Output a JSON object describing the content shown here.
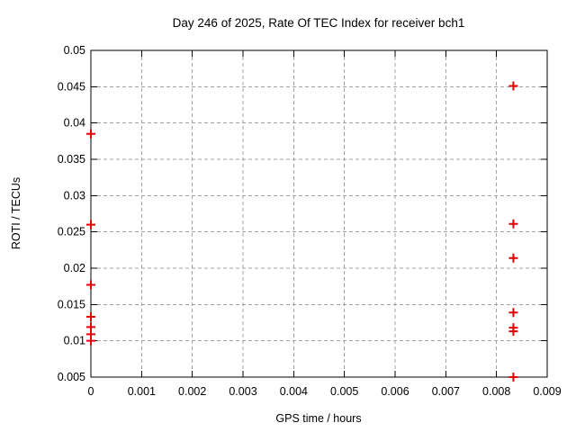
{
  "chart_data": {
    "type": "scatter",
    "title": "Day 246 of 2025, Rate Of TEC Index for receiver bch1",
    "xlabel": "GPS time / hours",
    "ylabel": "ROTI / TECUs",
    "xlim": [
      0,
      0.009
    ],
    "ylim": [
      0.005,
      0.05
    ],
    "grid": true,
    "legend": "none",
    "marker": {
      "shape": "plus",
      "color": "#e60000",
      "size": 10
    },
    "xticks": {
      "values": [
        0,
        0.001,
        0.002,
        0.003,
        0.004,
        0.005,
        0.006,
        0.007,
        0.008,
        0.009
      ],
      "labels": [
        "0",
        "0.001",
        "0.002",
        "0.003",
        "0.004",
        "0.005",
        "0.006",
        "0.007",
        "0.008",
        "0.009"
      ]
    },
    "yticks": {
      "values": [
        0.005,
        0.01,
        0.015,
        0.02,
        0.025,
        0.03,
        0.035,
        0.04,
        0.045,
        0.05
      ],
      "labels": [
        "0.005",
        "0.01",
        "0.015",
        "0.02",
        "0.025",
        "0.03",
        "0.035",
        "0.04",
        "0.045",
        "0.05"
      ]
    },
    "series": [
      {
        "name": "roti",
        "points": [
          [
            0,
            0.0385
          ],
          [
            0,
            0.026
          ],
          [
            0,
            0.0177
          ],
          [
            0,
            0.0133
          ],
          [
            0,
            0.0119
          ],
          [
            0,
            0.0109
          ],
          [
            0,
            0.01
          ],
          [
            0.008333,
            0.0451
          ],
          [
            0.008333,
            0.0261
          ],
          [
            0.008333,
            0.0214
          ],
          [
            0.008333,
            0.0139
          ],
          [
            0.008333,
            0.0118
          ],
          [
            0.008333,
            0.0113
          ],
          [
            0.008333,
            0.005
          ]
        ]
      }
    ],
    "colors": {
      "background": "#ffffff",
      "axis": "#000000",
      "grid": "#a0a0a0",
      "marker": "#e60000",
      "text": "#000000"
    }
  }
}
